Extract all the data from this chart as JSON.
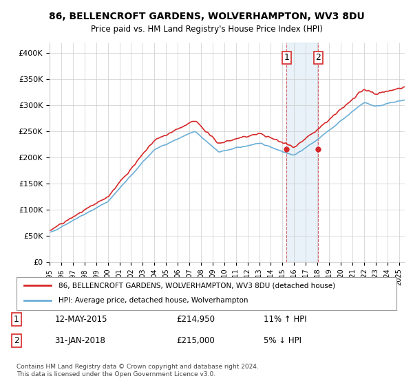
{
  "title": "86, BELLENCROFT GARDENS, WOLVERHAMPTON, WV3 8DU",
  "subtitle": "Price paid vs. HM Land Registry's House Price Index (HPI)",
  "ylabel_ticks": [
    "£0",
    "£50K",
    "£100K",
    "£150K",
    "£200K",
    "£250K",
    "£300K",
    "£350K",
    "£400K"
  ],
  "ytick_values": [
    0,
    50000,
    100000,
    150000,
    200000,
    250000,
    300000,
    350000,
    400000
  ],
  "ylim": [
    0,
    420000
  ],
  "xlim_start": 1995.0,
  "xlim_end": 2025.5,
  "hpi_color": "#6baed6",
  "price_color": "#d62728",
  "sale1_x": 2015.36,
  "sale1_y": 214950,
  "sale2_x": 2018.08,
  "sale2_y": 215000,
  "shade_x1": 2015.36,
  "shade_x2": 2018.08,
  "legend_label1": "86, BELLENCROFT GARDENS, WOLVERHAMPTON, WV3 8DU (detached house)",
  "legend_label2": "HPI: Average price, detached house, Wolverhampton",
  "annotation1_label": "1",
  "annotation2_label": "2",
  "ann1_date": "12-MAY-2015",
  "ann1_price": "£214,950",
  "ann1_hpi": "11% ↑ HPI",
  "ann2_date": "31-JAN-2018",
  "ann2_price": "£215,000",
  "ann2_hpi": "5% ↓ HPI",
  "footer": "Contains HM Land Registry data © Crown copyright and database right 2024.\nThis data is licensed under the Open Government Licence v3.0.",
  "background_color": "#ffffff",
  "plot_bg_color": "#ffffff",
  "grid_color": "#cccccc"
}
